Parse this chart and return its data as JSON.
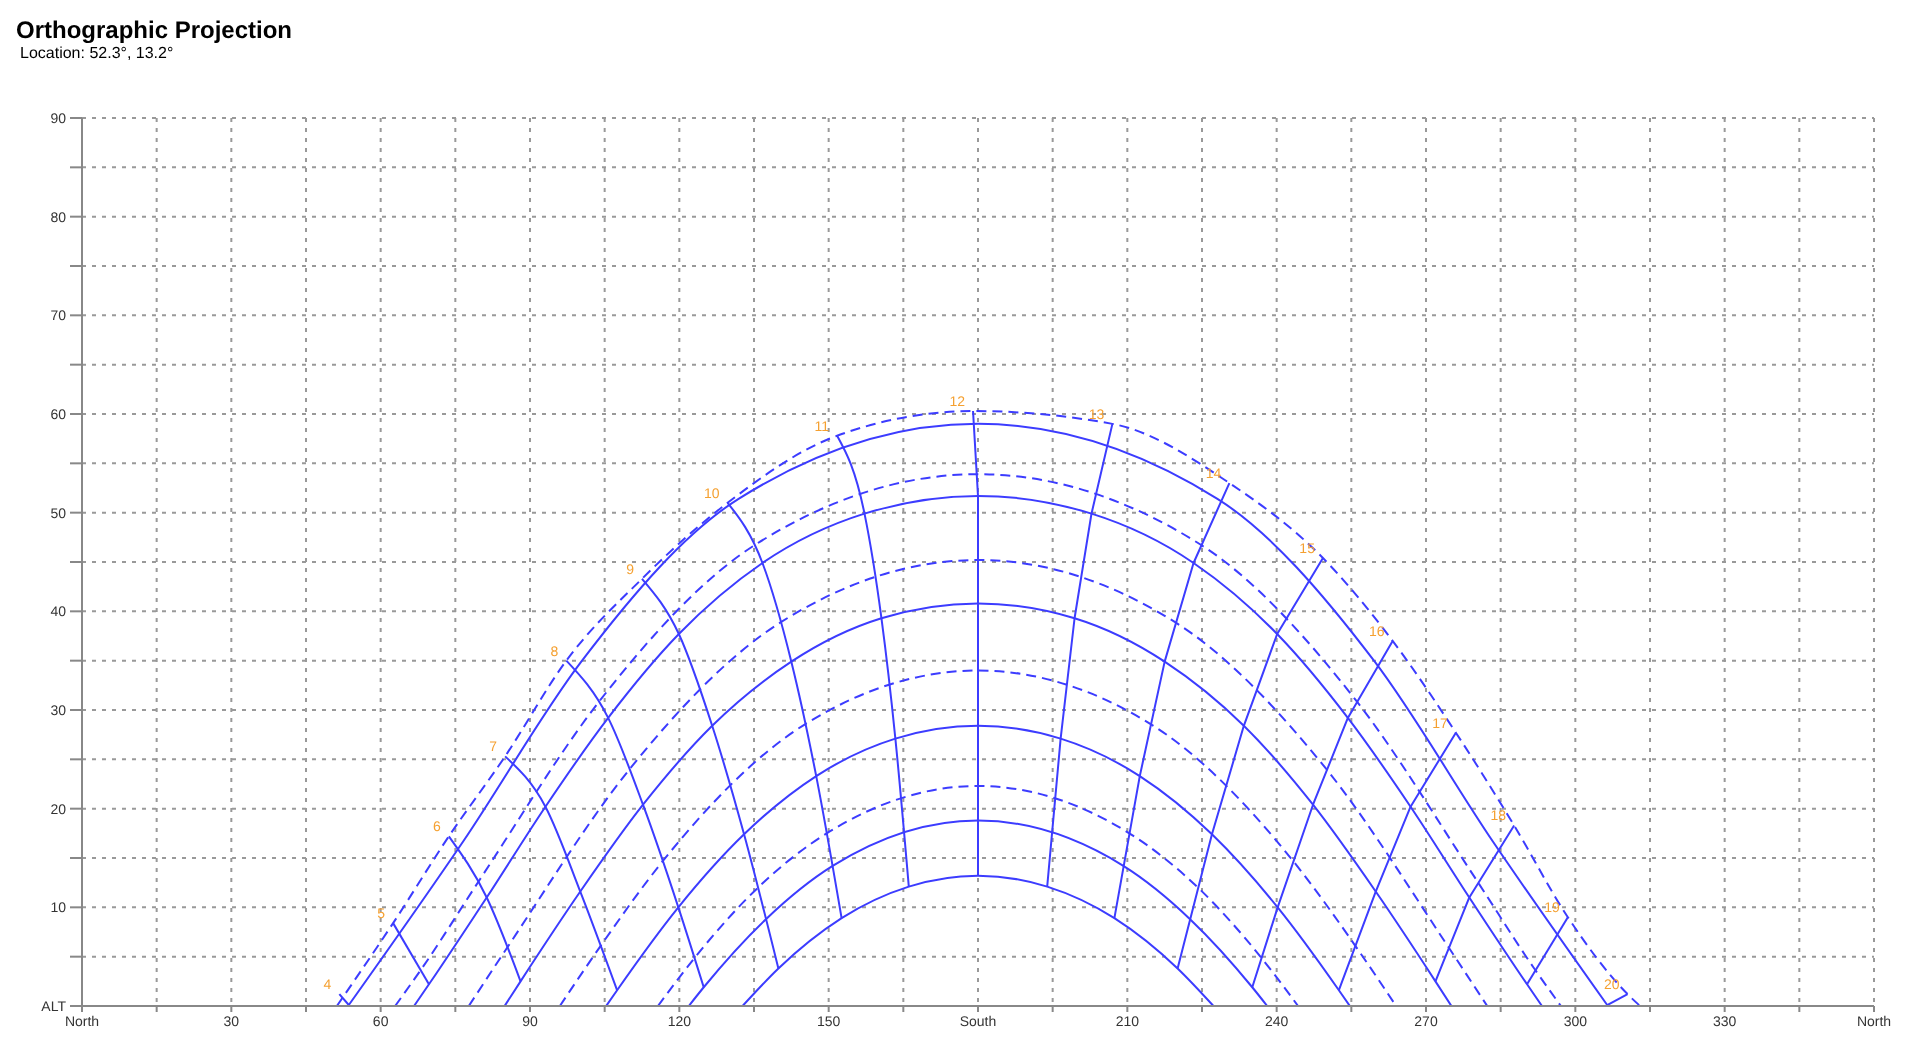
{
  "chart_data": {
    "type": "line",
    "title": "Orthographic Projection",
    "subtitle": "Location: 52.3°, 13.2°",
    "xlim": [
      0,
      360
    ],
    "xticks": [
      {
        "value": 0,
        "label": "North"
      },
      {
        "value": 15,
        "label": null
      },
      30,
      {
        "value": 45,
        "label": null
      },
      60,
      {
        "value": 75,
        "label": null
      },
      90,
      {
        "value": 105,
        "label": null
      },
      120,
      {
        "value": 135,
        "label": null
      },
      150,
      {
        "value": 165,
        "label": null
      },
      {
        "value": 180,
        "label": "South"
      },
      {
        "value": 195,
        "label": null
      },
      210,
      {
        "value": 225,
        "label": null
      },
      240,
      {
        "value": 255,
        "label": null
      },
      270,
      {
        "value": 285,
        "label": null
      },
      300,
      {
        "value": 315,
        "label": null
      },
      330,
      {
        "value": 345,
        "label": null
      },
      {
        "value": 360,
        "label": "North"
      }
    ],
    "ylim": [
      0,
      90
    ],
    "yticks": [
      {
        "value": 0,
        "label": "ALT"
      },
      {
        "value": 5,
        "label": null
      },
      10,
      {
        "value": 15,
        "label": null
      },
      20,
      {
        "value": 25,
        "label": null
      },
      30,
      {
        "value": 35,
        "label": null
      },
      40,
      {
        "value": 45,
        "label": null
      },
      50,
      {
        "value": 55,
        "label": null
      },
      60,
      {
        "value": 65,
        "label": null
      },
      70,
      {
        "value": 75,
        "label": null
      },
      80,
      {
        "value": 85,
        "label": null
      },
      90
    ],
    "grid": true,
    "marker": "none",
    "legend": false,
    "series": [
      {
        "color": "#3c3cff",
        "line_style": "dashed",
        "x": [
          51.2,
          62.5,
          73.7,
          85,
          97.3,
          112.5,
          129.7,
          151.7,
          179,
          207,
          230.5,
          249.3,
          263.3,
          276,
          287.7,
          298.5,
          310.5,
          313
        ],
        "values": [
          0,
          8.4,
          17.2,
          25.3,
          35,
          43.3,
          51,
          57.8,
          60.3,
          59,
          53,
          45.4,
          37,
          27.7,
          18.3,
          9,
          1.2,
          0
        ]
      },
      {
        "color": "#3c3cff",
        "line_style": "solid",
        "x": [
          53.6,
          76.6,
          100.3,
          131.9,
          180,
          228.1,
          259.7,
          283.4,
          306.4
        ],
        "values": [
          0.1,
          16.7,
          34.9,
          51.4,
          59,
          51.4,
          34.9,
          16.7,
          0.1
        ]
      },
      {
        "color": "#3c3cff",
        "line_style": "dashed",
        "x": [
          62.9,
          68.4,
          79.9,
          104.1,
          135.4,
          180,
          224.6,
          255.9,
          280.1,
          291.6,
          297.1
        ],
        "values": [
          0,
          3.9,
          12.8,
          31,
          46.8,
          53.9,
          46.8,
          31,
          12.8,
          3.9,
          0
        ]
      },
      {
        "color": "#3c3cff",
        "line_style": "solid",
        "x": [
          66.7,
          69.7,
          81.3,
          93.1,
          105.7,
          119.9,
          136.7,
          157.2,
          180,
          202.8,
          223.3,
          240.1,
          254.3,
          266.9,
          278.7,
          290.3,
          293.3
        ],
        "values": [
          0,
          2.2,
          11,
          20.2,
          29.2,
          37.7,
          44.9,
          49.9,
          51.7,
          49.9,
          44.9,
          37.7,
          29.2,
          20.2,
          11,
          2.2,
          0
        ]
      },
      {
        "color": "#3c3cff",
        "line_style": "dashed",
        "x": [
          77.7,
          85.4,
          110,
          140.4,
          180,
          219.6,
          250,
          274.6,
          282.3
        ],
        "values": [
          0,
          5.9,
          24,
          38.9,
          45.2,
          38.9,
          24,
          5.9,
          0
        ]
      },
      {
        "color": "#3c3cff",
        "line_style": "solid",
        "x": [
          84.9,
          88.1,
          100.1,
          112.7,
          126.6,
          142.5,
          160.6,
          180,
          199.4,
          217.5,
          233.4,
          247.3,
          259.9,
          271.9,
          275.1
        ],
        "values": [
          0,
          2.5,
          11.6,
          20.4,
          28.4,
          34.9,
          39.3,
          40.8,
          39.3,
          34.9,
          28.4,
          20.4,
          11.6,
          2.5,
          0
        ]
      },
      {
        "color": "#3c3cff",
        "line_style": "dashed",
        "x": [
          96,
          104.2,
          116.7,
          145.4,
          180,
          214.6,
          243.3,
          255.8,
          264
        ],
        "values": [
          0,
          6.1,
          14.7,
          28.6,
          34,
          28.6,
          14.7,
          6.1,
          0
        ]
      },
      {
        "color": "#3c3cff",
        "line_style": "solid",
        "x": [
          105.3,
          107.5,
          119.8,
          133,
          147.5,
          163.4,
          180,
          196.6,
          212.5,
          227,
          240.2,
          252.5,
          254.7
        ],
        "values": [
          0,
          1.6,
          10,
          17.4,
          23.3,
          27.1,
          28.4,
          27.1,
          23.3,
          17.4,
          10,
          1.6,
          0
        ]
      },
      {
        "color": "#3c3cff",
        "line_style": "dashed",
        "x": [
          115.7,
          123.1,
          135.8,
          149.6,
          180,
          210.4,
          224.2,
          236.9,
          244.3
        ],
        "values": [
          0,
          4.9,
          12,
          17.5,
          22.3,
          17.5,
          12,
          4.9,
          0
        ]
      },
      {
        "color": "#3c3cff",
        "line_style": "solid",
        "x": [
          121.9,
          124.9,
          137.4,
          150.8,
          180,
          209.2,
          222.6,
          235.1,
          238.1
        ],
        "values": [
          0,
          1.9,
          8.8,
          14.2,
          18.8,
          14.2,
          8.8,
          1.9,
          0
        ]
      },
      {
        "color": "#3c3cff",
        "line_style": "solid",
        "x": [
          132.7,
          139.9,
          152.6,
          166.1,
          180,
          193.9,
          207.4,
          220.1,
          227.3
        ],
        "values": [
          0,
          3.8,
          8.9,
          12.1,
          13.2,
          12.1,
          8.9,
          3.8,
          0
        ]
      },
      {
        "color": "#3c3cff",
        "line_style": "solid",
        "x": [
          51.7,
          53.6
        ],
        "values": [
          1.2,
          0.1
        ]
      },
      {
        "color": "#3c3cff",
        "line_style": "solid",
        "x": [
          62.5,
          69.7
        ],
        "values": [
          8.4,
          2.2
        ]
      },
      {
        "color": "#3c3cff",
        "line_style": "solid",
        "x": [
          73.7,
          81.3,
          88.1
        ],
        "values": [
          17.2,
          11,
          2.5
        ]
      },
      {
        "color": "#3c3cff",
        "line_style": "solid",
        "x": [
          85,
          93.1,
          100.1,
          107.5
        ],
        "values": [
          25.3,
          20.2,
          11.6,
          1.6
        ]
      },
      {
        "color": "#3c3cff",
        "line_style": "solid",
        "x": [
          97.3,
          105.7,
          112.7,
          119.8,
          124.9
        ],
        "values": [
          35,
          29.2,
          20.4,
          10,
          1.9
        ]
      },
      {
        "color": "#3c3cff",
        "line_style": "solid",
        "x": [
          112.5,
          119.9,
          126.6,
          133,
          139.9
        ],
        "values": [
          43.3,
          37.7,
          28.4,
          17.4,
          3.8
        ]
      },
      {
        "color": "#3c3cff",
        "line_style": "solid",
        "x": [
          129.7,
          136.7,
          142.5,
          147.5,
          152.6
        ],
        "values": [
          51,
          44.9,
          34.9,
          23.3,
          8.9
        ]
      },
      {
        "color": "#3c3cff",
        "line_style": "solid",
        "x": [
          151.7,
          157.2,
          160.6,
          163.4,
          166.1
        ],
        "values": [
          57.8,
          49.9,
          39.3,
          27.1,
          12.1
        ]
      },
      {
        "color": "#3c3cff",
        "line_style": "solid",
        "x": [
          179,
          180,
          180,
          180,
          180
        ],
        "values": [
          60.3,
          51.7,
          40.8,
          28.4,
          13.2
        ]
      },
      {
        "color": "#3c3cff",
        "line_style": "solid",
        "x": [
          207,
          202.8,
          199.4,
          196.6,
          193.9
        ],
        "values": [
          59,
          49.9,
          39.3,
          27.1,
          12.1
        ]
      },
      {
        "color": "#3c3cff",
        "line_style": "solid",
        "x": [
          230.5,
          223.3,
          217.5,
          212.5,
          207.4
        ],
        "values": [
          53,
          44.9,
          34.9,
          23.3,
          8.9
        ]
      },
      {
        "color": "#3c3cff",
        "line_style": "solid",
        "x": [
          249.3,
          240.1,
          233.4,
          227,
          220.1
        ],
        "values": [
          45.4,
          37.7,
          28.4,
          17.4,
          3.8
        ]
      },
      {
        "color": "#3c3cff",
        "line_style": "solid",
        "x": [
          263.3,
          254.3,
          247.3,
          240.2,
          235.1
        ],
        "values": [
          37,
          29.2,
          20.4,
          10,
          1.9
        ]
      },
      {
        "color": "#3c3cff",
        "line_style": "solid",
        "x": [
          276,
          266.9,
          259.9,
          252.5
        ],
        "values": [
          27.7,
          20.2,
          11.6,
          1.6
        ]
      },
      {
        "color": "#3c3cff",
        "line_style": "solid",
        "x": [
          287.7,
          278.7,
          271.9
        ],
        "values": [
          18.3,
          11,
          2.5
        ]
      },
      {
        "color": "#3c3cff",
        "line_style": "solid",
        "x": [
          298.5,
          290.3
        ],
        "values": [
          9,
          2.2
        ]
      },
      {
        "color": "#3c3cff",
        "line_style": "solid",
        "x": [
          310.5,
          306.4
        ],
        "values": [
          1.2,
          0.1
        ]
      }
    ],
    "annotations": [
      {
        "text": "4",
        "x": 51.7,
        "y": 1.2
      },
      {
        "text": "5",
        "x": 62.5,
        "y": 8.4
      },
      {
        "text": "6",
        "x": 73.7,
        "y": 17.2
      },
      {
        "text": "7",
        "x": 85,
        "y": 25.3
      },
      {
        "text": "8",
        "x": 97.3,
        "y": 35
      },
      {
        "text": "9",
        "x": 112.5,
        "y": 43.3
      },
      {
        "text": "10",
        "x": 129.7,
        "y": 51
      },
      {
        "text": "11",
        "x": 151.7,
        "y": 57.8
      },
      {
        "text": "12",
        "x": 179,
        "y": 60.3
      },
      {
        "text": "13",
        "x": 207,
        "y": 59
      },
      {
        "text": "14",
        "x": 230.5,
        "y": 53
      },
      {
        "text": "15",
        "x": 249.3,
        "y": 45.4
      },
      {
        "text": "16",
        "x": 263.3,
        "y": 37
      },
      {
        "text": "17",
        "x": 276,
        "y": 27.7
      },
      {
        "text": "18",
        "x": 287.7,
        "y": 18.3
      },
      {
        "text": "19",
        "x": 298.5,
        "y": 9
      },
      {
        "text": "20",
        "x": 310.5,
        "y": 1.2
      }
    ]
  }
}
